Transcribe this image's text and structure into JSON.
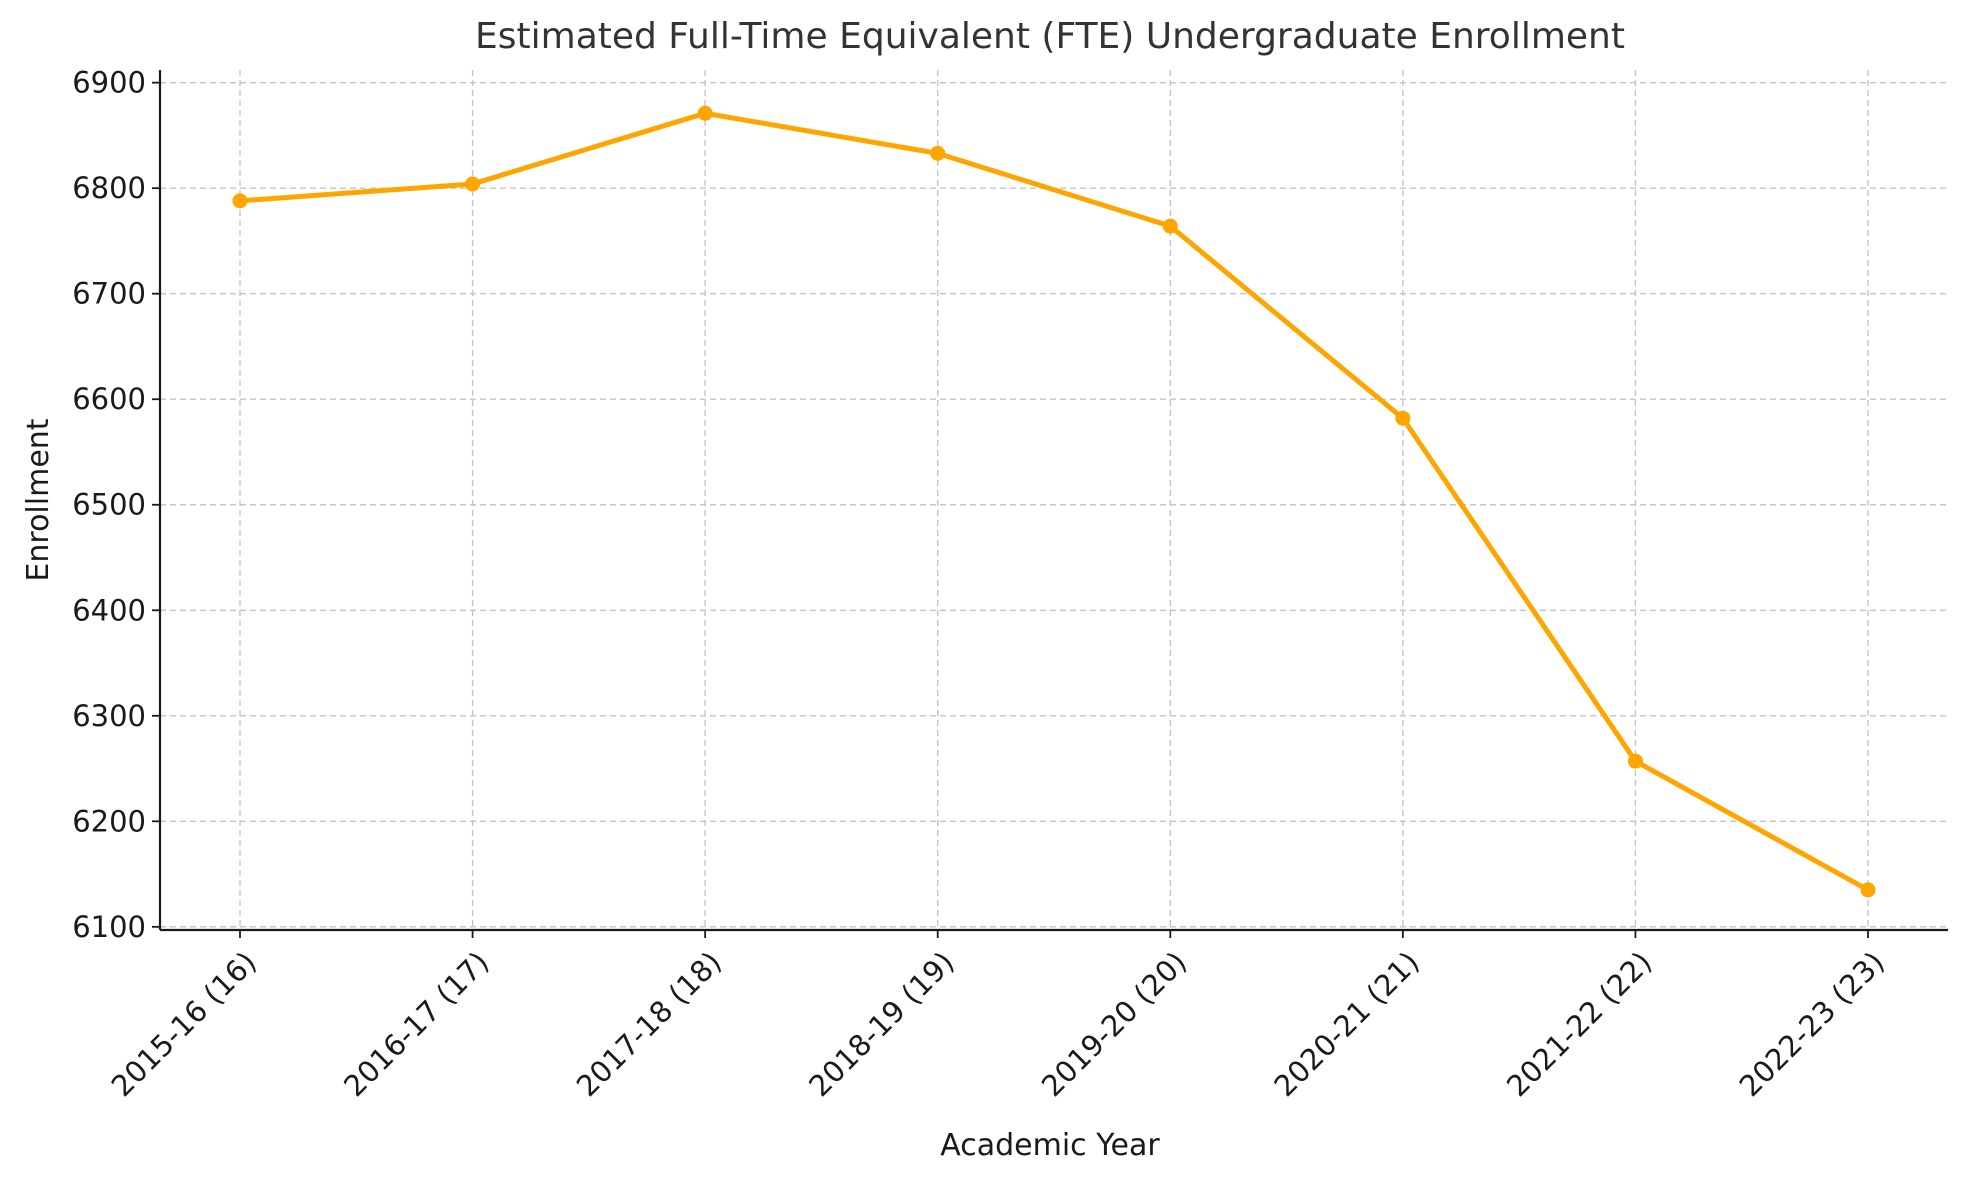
{
  "chart_data": {
    "type": "line",
    "title": "Estimated Full-Time Equivalent (FTE) Undergraduate Enrollment",
    "xlabel": "Academic Year",
    "ylabel": "Enrollment",
    "categories": [
      "2015-16 (16)",
      "2016-17 (17)",
      "2017-18 (18)",
      "2018-19 (19)",
      "2019-20 (20)",
      "2020-21 (21)",
      "2021-22 (22)",
      "2022-23 (23)"
    ],
    "series": [
      {
        "values": [
          6788,
          6804,
          6871,
          6833,
          6764,
          6582,
          6257,
          6135
        ],
        "color": "#FFA500"
      }
    ],
    "yticks": [
      6100,
      6200,
      6300,
      6400,
      6500,
      6600,
      6700,
      6800,
      6900
    ],
    "ylim": [
      6097,
      6912
    ],
    "grid": true,
    "marker": "circle"
  }
}
